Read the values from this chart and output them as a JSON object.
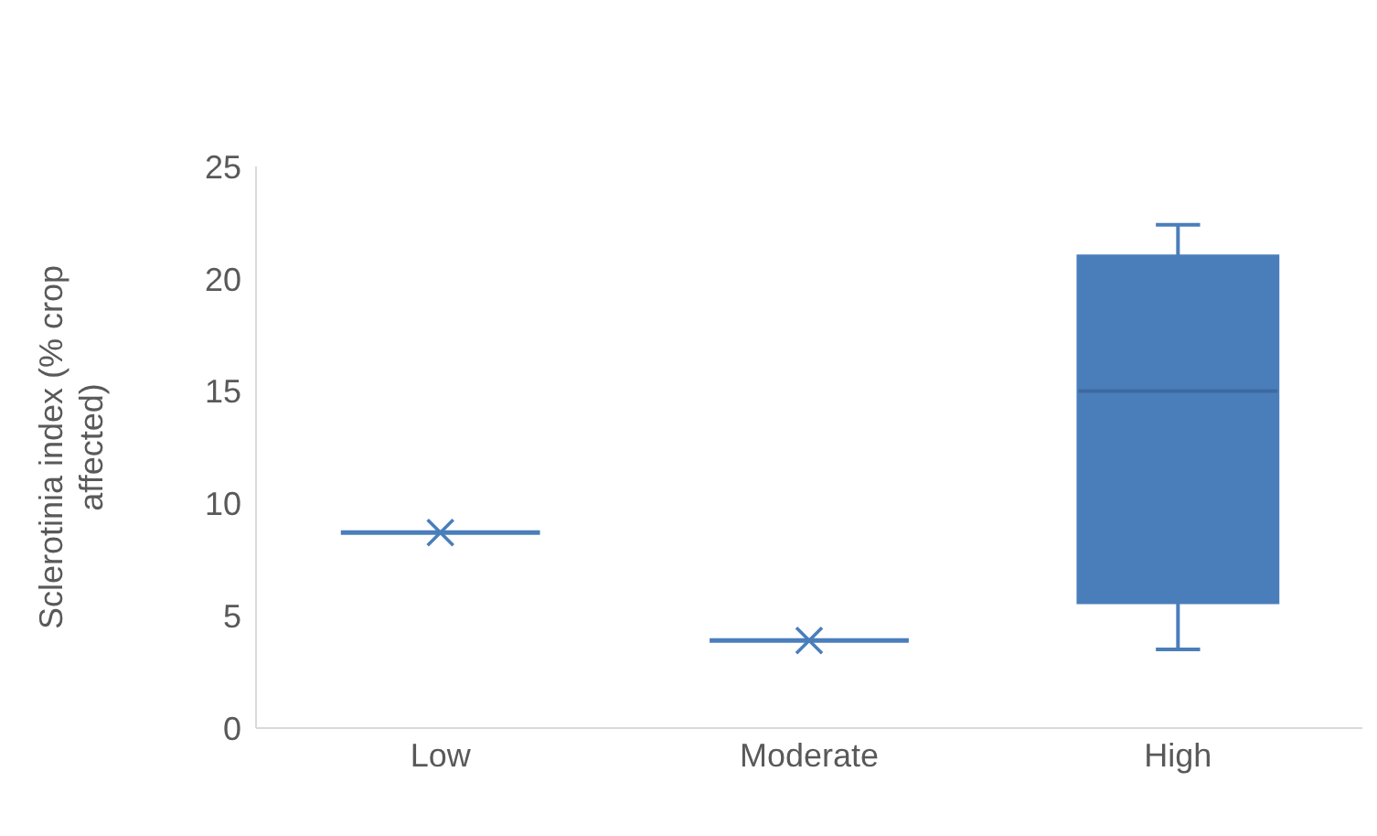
{
  "chart_data": {
    "type": "box",
    "ylabel": "Sclerotinia index (% crop affected)",
    "categories": [
      "Low",
      "Moderate",
      "High"
    ],
    "color": "#4a7ebb",
    "boxes": [
      {
        "low": 8.7,
        "q1": 8.7,
        "median": 8.7,
        "q3": 8.7,
        "high": 8.7,
        "mean": 8.7
      },
      {
        "low": 3.9,
        "q1": 3.9,
        "median": 3.9,
        "q3": 3.9,
        "high": 3.9,
        "mean": 3.9
      },
      {
        "low": 3.5,
        "q1": 5.6,
        "median": 15.0,
        "q3": 21.0,
        "high": 22.4,
        "mean": 13.7
      }
    ],
    "ylim": [
      0,
      25
    ],
    "yticks": [
      0,
      5,
      10,
      15,
      20,
      25
    ]
  }
}
